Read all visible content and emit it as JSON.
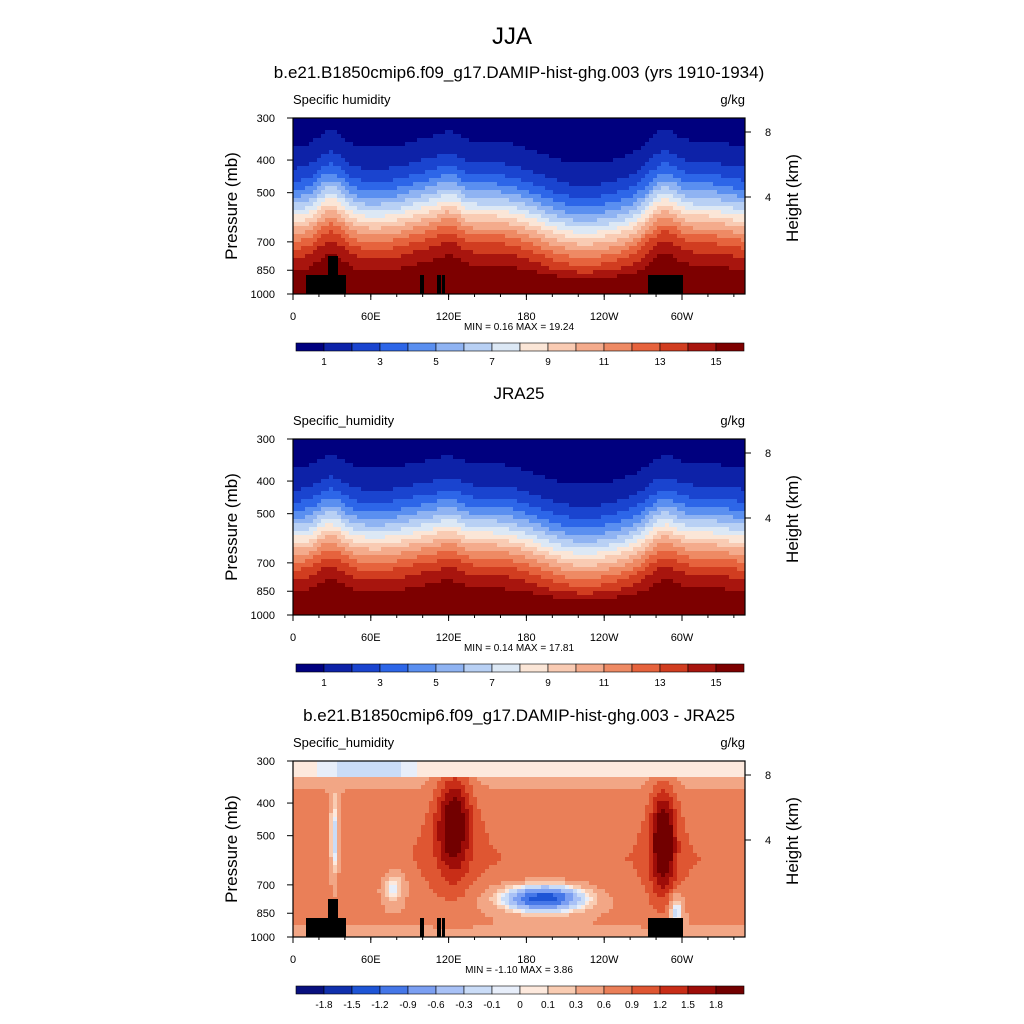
{
  "figure": {
    "title": "JJA"
  },
  "colors": {
    "abs_palette": [
      "#00007f",
      "#0d22a8",
      "#1a44cf",
      "#2d66e8",
      "#5a8ff0",
      "#8fb3f2",
      "#b8d0f4",
      "#dce8f5",
      "#fbe6d7",
      "#f9cbb3",
      "#f4ab8c",
      "#ee8a64",
      "#e6633d",
      "#d13d20",
      "#a8150e",
      "#7d0000"
    ],
    "diff_palette": [
      "#08107e",
      "#1030ad",
      "#1e55d6",
      "#4577e8",
      "#7b9ff2",
      "#a8c1f6",
      "#cadcf7",
      "#e7eefa",
      "#fde9dd",
      "#f9ccb2",
      "#f2a685",
      "#ea7f58",
      "#df5632",
      "#c82d17",
      "#9e0d08",
      "#720000"
    ],
    "topography": "#000000"
  },
  "chart_data": [
    {
      "type": "heatmap",
      "title": "b.e21.B1850cmip6.f09_g17.DAMIP-hist-ghg.003 (yrs 1910-1934)",
      "variable_label": "Specific humidity",
      "units_label": "g/kg",
      "ylabel": "Pressure (mb)",
      "y2label": "Height (km)",
      "pressure_ticks": [
        300,
        400,
        500,
        700,
        850,
        1000
      ],
      "height_ticks": [
        "8",
        "4"
      ],
      "longitude_ticks": [
        "0",
        "60E",
        "120E",
        "180",
        "120W",
        "60W"
      ],
      "min": "0.16",
      "max": "19.24",
      "minmax_text": "MIN =   0.16  MAX =  19.24",
      "colorbar_labels": [
        "1",
        "3",
        "5",
        "7",
        "9",
        "11",
        "13",
        "15"
      ],
      "levels": [
        1,
        2,
        3,
        4,
        5,
        6,
        7,
        8,
        9,
        10,
        11,
        12,
        13,
        14,
        15
      ],
      "topography_masked": true
    },
    {
      "type": "heatmap",
      "title": "JRA25",
      "variable_label": "Specific_humidity",
      "units_label": "g/kg",
      "ylabel": "Pressure (mb)",
      "y2label": "Height (km)",
      "pressure_ticks": [
        300,
        400,
        500,
        700,
        850,
        1000
      ],
      "height_ticks": [
        "8",
        "4"
      ],
      "longitude_ticks": [
        "0",
        "60E",
        "120E",
        "180",
        "120W",
        "60W"
      ],
      "min": "0.14",
      "max": "17.81",
      "minmax_text": "MIN =   0.14  MAX =  17.81",
      "colorbar_labels": [
        "1",
        "3",
        "5",
        "7",
        "9",
        "11",
        "13",
        "15"
      ],
      "levels": [
        1,
        2,
        3,
        4,
        5,
        6,
        7,
        8,
        9,
        10,
        11,
        12,
        13,
        14,
        15
      ],
      "topography_masked": false
    },
    {
      "type": "heatmap",
      "title": "b.e21.B1850cmip6.f09_g17.DAMIP-hist-ghg.003 - JRA25",
      "variable_label": "Specific_humidity",
      "units_label": "g/kg",
      "ylabel": "Pressure (mb)",
      "y2label": "Height (km)",
      "pressure_ticks": [
        300,
        400,
        500,
        700,
        850,
        1000
      ],
      "height_ticks": [
        "8",
        "4"
      ],
      "longitude_ticks": [
        "0",
        "60E",
        "120E",
        "180",
        "120W",
        "60W"
      ],
      "min": "-1.10",
      "max": "3.86",
      "minmax_text": "MIN =  -1.10  MAX =   3.86",
      "colorbar_labels": [
        "-1.8",
        "-1.5",
        "-1.2",
        "-0.9",
        "-0.6",
        "-0.3",
        "-0.1",
        "0",
        "0.1",
        "0.3",
        "0.6",
        "0.9",
        "1.2",
        "1.5",
        "1.8"
      ],
      "levels": [
        -1.8,
        -1.5,
        -1.2,
        -0.9,
        -0.6,
        -0.3,
        -0.1,
        0,
        0.1,
        0.3,
        0.6,
        0.9,
        1.2,
        1.5,
        1.8
      ],
      "topography_masked": true
    }
  ]
}
